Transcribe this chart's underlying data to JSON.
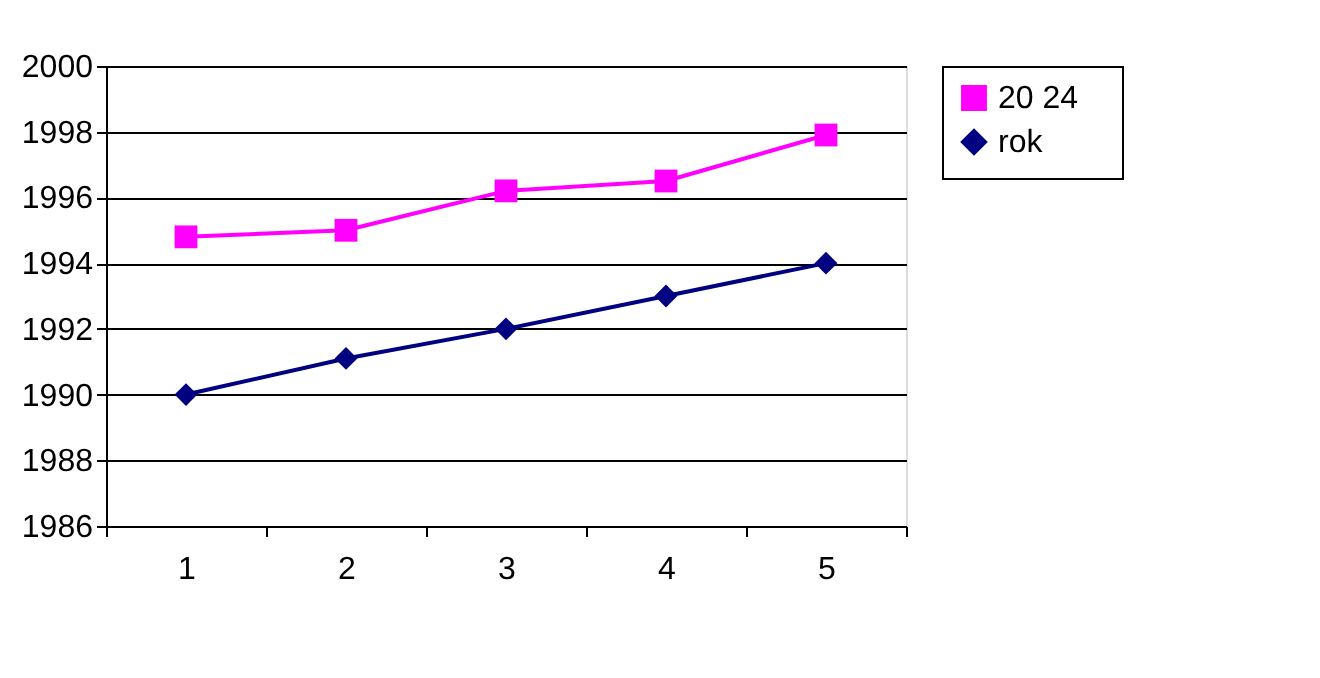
{
  "chart_data": {
    "type": "line",
    "categories": [
      "1",
      "2",
      "3",
      "4",
      "5"
    ],
    "series": [
      {
        "name": "20    24",
        "color": "#ff00ff",
        "marker": "square",
        "values": [
          1994.8,
          1995.0,
          1996.2,
          1996.5,
          1997.9
        ]
      },
      {
        "name": "rok",
        "color": "#000080",
        "marker": "diamond",
        "values": [
          1990,
          1991.1,
          1992,
          1993,
          1994
        ]
      }
    ],
    "ylim": [
      1986,
      2000
    ],
    "yticks": [
      1986,
      1988,
      1990,
      1992,
      1994,
      1996,
      1998,
      2000
    ],
    "grid": "y",
    "legend": "right"
  }
}
